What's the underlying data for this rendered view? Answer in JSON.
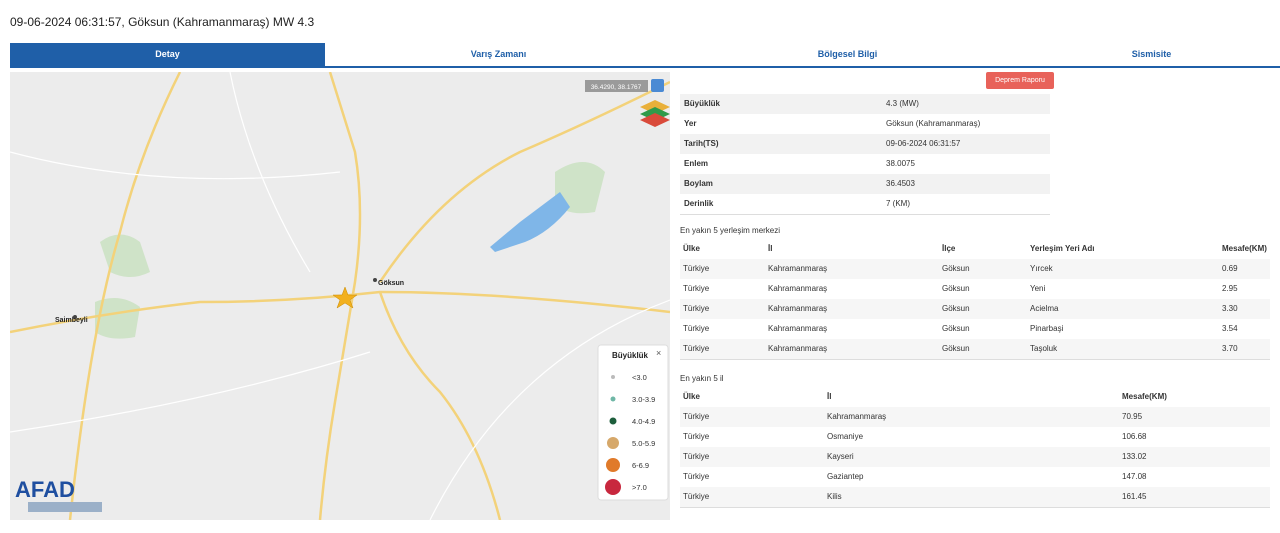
{
  "header": {
    "title": "09-06-2024 06:31:57, Göksun (Kahramanmaraş) MW 4.3"
  },
  "tabs": [
    "Detay",
    "Varış Zamanı",
    "Bölgesel Bilgi",
    "Sismisite"
  ],
  "map": {
    "coords": "36.4290, 38.1767",
    "logo": "AFAD",
    "places": [
      "Göksun",
      "Saimbeyli"
    ],
    "legend": {
      "title": "Büyüklük",
      "items": [
        "<3.0",
        "3.0-3.9",
        "4.0-4.9",
        "5.0-5.9",
        "6-6.9",
        ">7.0"
      ]
    }
  },
  "report_button": "Deprem Raporu",
  "details": [
    [
      "Büyüklük",
      "4.3 (MW)"
    ],
    [
      "Yer",
      "Göksun (Kahramanmaraş)"
    ],
    [
      "Tarih(TS)",
      "09-06-2024 06:31:57"
    ],
    [
      "Enlem",
      "38.0075"
    ],
    [
      "Boylam",
      "36.4503"
    ],
    [
      "Derinlik",
      "7 (KM)"
    ]
  ],
  "settlements": {
    "title": "En yakın 5 yerleşim merkezi",
    "columns": [
      "Ülke",
      "İl",
      "İlçe",
      "Yerleşim Yeri Adı",
      "Mesafe(KM)"
    ],
    "rows": [
      [
        "Türkiye",
        "Kahramanmaraş",
        "Göksun",
        "Yırcek",
        "0.69"
      ],
      [
        "Türkiye",
        "Kahramanmaraş",
        "Göksun",
        "Yeni",
        "2.95"
      ],
      [
        "Türkiye",
        "Kahramanmaraş",
        "Göksun",
        "Acielma",
        "3.30"
      ],
      [
        "Türkiye",
        "Kahramanmaraş",
        "Göksun",
        "Pinarbaşi",
        "3.54"
      ],
      [
        "Türkiye",
        "Kahramanmaraş",
        "Göksun",
        "Taşoluk",
        "3.70"
      ]
    ]
  },
  "provinces": {
    "title": "En yakın 5 il",
    "columns": [
      "Ülke",
      "İl",
      "Mesafe(KM)"
    ],
    "rows": [
      [
        "Türkiye",
        "Kahramanmaraş",
        "70.95"
      ],
      [
        "Türkiye",
        "Osmaniye",
        "106.68"
      ],
      [
        "Türkiye",
        "Kayseri",
        "133.02"
      ],
      [
        "Türkiye",
        "Gaziantep",
        "147.08"
      ],
      [
        "Türkiye",
        "Kilis",
        "161.45"
      ]
    ]
  }
}
